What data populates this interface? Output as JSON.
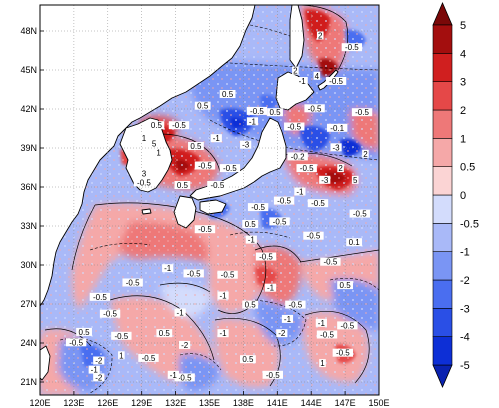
{
  "map": {
    "projection": "cylindrical-equidistant",
    "lon_range": [
      120,
      150
    ],
    "lat_range": [
      20,
      50
    ],
    "lon_ticks": [
      "120E",
      "123E",
      "126E",
      "129E",
      "132E",
      "135E",
      "138E",
      "141E",
      "144E",
      "147E",
      "150E"
    ],
    "lat_ticks": [
      "21N",
      "24N",
      "27N",
      "30N",
      "33N",
      "36N",
      "39N",
      "42N",
      "45N",
      "48N"
    ],
    "land_color": "#ffffff",
    "coastline_color": "#000000",
    "grid": "dotted"
  },
  "colorbar": {
    "orientation": "vertical",
    "arrow_ends": true,
    "levels": [
      "-5",
      "-4",
      "-3",
      "-2",
      "-1",
      "-0.5",
      "0",
      "0.5",
      "1",
      "2",
      "3",
      "4",
      "5"
    ],
    "colors": [
      "#0d2fd6",
      "#2a4fe6",
      "#4a6ef0",
      "#7a95f4",
      "#a9b9f8",
      "#d3dcfc",
      "#fbd4d4",
      "#f5a8a8",
      "#ee7878",
      "#e54848",
      "#d01f1f",
      "#a30e0e"
    ],
    "low_arrow_color": "#0a22b0",
    "high_arrow_color": "#7a0808"
  },
  "contour_labels": [
    {
      "text": "2",
      "lon": 144.8,
      "lat": 47.5
    },
    {
      "text": "-0.5",
      "lon": 147.6,
      "lat": 46.6
    },
    {
      "text": "2",
      "lon": 142.6,
      "lat": 44.8
    },
    {
      "text": "-1",
      "lon": 143.2,
      "lat": 44.0
    },
    {
      "text": "4",
      "lon": 144.5,
      "lat": 44.4
    },
    {
      "text": "-0.5",
      "lon": 146.2,
      "lat": 44.0
    },
    {
      "text": "0.5",
      "lon": 136.6,
      "lat": 43.0
    },
    {
      "text": "-0.5",
      "lon": 139.2,
      "lat": 41.7
    },
    {
      "text": "0.5",
      "lon": 140.8,
      "lat": 41.6
    },
    {
      "text": "0.5",
      "lon": 134.4,
      "lat": 42.1
    },
    {
      "text": "-0.5",
      "lon": 144.3,
      "lat": 41.9
    },
    {
      "text": "-0.5",
      "lon": 148.5,
      "lat": 41.6
    },
    {
      "text": "-0.5",
      "lon": 132.3,
      "lat": 40.6
    },
    {
      "text": "0.5",
      "lon": 130.3,
      "lat": 40.6
    },
    {
      "text": "-1",
      "lon": 138.8,
      "lat": 40.9
    },
    {
      "text": "-0.5",
      "lon": 142.5,
      "lat": 40.5
    },
    {
      "text": "-0.1",
      "lon": 146.3,
      "lat": 40.4
    },
    {
      "text": "1",
      "lon": 129.2,
      "lat": 39.6
    },
    {
      "text": "5",
      "lon": 130.1,
      "lat": 39.2
    },
    {
      "text": "0.5",
      "lon": 133.8,
      "lat": 39.0
    },
    {
      "text": "-1",
      "lon": 135.6,
      "lat": 39.6
    },
    {
      "text": "-3",
      "lon": 138.2,
      "lat": 39.1
    },
    {
      "text": "1",
      "lon": 130.5,
      "lat": 38.5
    },
    {
      "text": "-0.2",
      "lon": 142.8,
      "lat": 38.2
    },
    {
      "text": "-3",
      "lon": 146.2,
      "lat": 38.9
    },
    {
      "text": "2",
      "lon": 148.8,
      "lat": 38.4
    },
    {
      "text": "-0.5",
      "lon": 134.6,
      "lat": 37.5
    },
    {
      "text": "-0.5",
      "lon": 136.8,
      "lat": 37.3
    },
    {
      "text": "-0.5",
      "lon": 143.6,
      "lat": 37.3
    },
    {
      "text": "2",
      "lon": 146.6,
      "lat": 37.3
    },
    {
      "text": "3",
      "lon": 129.2,
      "lat": 36.9
    },
    {
      "text": "-0.5",
      "lon": 129.2,
      "lat": 36.2
    },
    {
      "text": "0.5",
      "lon": 132.6,
      "lat": 36.0
    },
    {
      "text": "-0.5",
      "lon": 135.7,
      "lat": 36.0
    },
    {
      "text": "-3",
      "lon": 145.2,
      "lat": 36.4
    },
    {
      "text": "5",
      "lon": 147.9,
      "lat": 36.4
    },
    {
      "text": "-1",
      "lon": 143.0,
      "lat": 35.5
    },
    {
      "text": "-0.5",
      "lon": 141.6,
      "lat": 34.8
    },
    {
      "text": "-0.5",
      "lon": 139.3,
      "lat": 34.3
    },
    {
      "text": "-0.5",
      "lon": 144.6,
      "lat": 34.6
    },
    {
      "text": "-0.5",
      "lon": 141.2,
      "lat": 33.2
    },
    {
      "text": "0.5",
      "lon": 138.6,
      "lat": 33.0
    },
    {
      "text": "-0.5",
      "lon": 134.6,
      "lat": 32.6
    },
    {
      "text": "-0.5",
      "lon": 148.3,
      "lat": 33.8
    },
    {
      "text": "-1",
      "lon": 138.7,
      "lat": 31.8
    },
    {
      "text": "-0.5",
      "lon": 144.2,
      "lat": 32.1
    },
    {
      "text": "0.1",
      "lon": 147.8,
      "lat": 31.6
    },
    {
      "text": "-0.5",
      "lon": 140.0,
      "lat": 30.5
    },
    {
      "text": "-0.5",
      "lon": 145.7,
      "lat": 30.1
    },
    {
      "text": "-1",
      "lon": 131.3,
      "lat": 29.6
    },
    {
      "text": "-0.5",
      "lon": 133.6,
      "lat": 29.2
    },
    {
      "text": "-0.5",
      "lon": 136.6,
      "lat": 29.1
    },
    {
      "text": "-0.5",
      "lon": 128.2,
      "lat": 28.5
    },
    {
      "text": "-1",
      "lon": 140.4,
      "lat": 28.1
    },
    {
      "text": "-1",
      "lon": 136.2,
      "lat": 27.5
    },
    {
      "text": "0.5",
      "lon": 147.0,
      "lat": 28.3
    },
    {
      "text": "-0.5",
      "lon": 125.3,
      "lat": 27.4
    },
    {
      "text": "0.5",
      "lon": 138.6,
      "lat": 26.8
    },
    {
      "text": "-0.5",
      "lon": 142.6,
      "lat": 26.8
    },
    {
      "text": "-0.5",
      "lon": 126.2,
      "lat": 26.1
    },
    {
      "text": "-1",
      "lon": 132.4,
      "lat": 26.2
    },
    {
      "text": "-1",
      "lon": 141.9,
      "lat": 25.7
    },
    {
      "text": "-1",
      "lon": 144.9,
      "lat": 25.4
    },
    {
      "text": "-0.5",
      "lon": 147.2,
      "lat": 25.2
    },
    {
      "text": "0.5",
      "lon": 123.9,
      "lat": 24.7
    },
    {
      "text": "0.5",
      "lon": 131.0,
      "lat": 24.6
    },
    {
      "text": "-0.5",
      "lon": 127.2,
      "lat": 24.4
    },
    {
      "text": "-1",
      "lon": 136.2,
      "lat": 24.6
    },
    {
      "text": "-2",
      "lon": 141.4,
      "lat": 24.6
    },
    {
      "text": "-0.5",
      "lon": 145.4,
      "lat": 24.5
    },
    {
      "text": "-0.5",
      "lon": 123.2,
      "lat": 23.9
    },
    {
      "text": "-2",
      "lon": 132.8,
      "lat": 23.7
    },
    {
      "text": "-0.5",
      "lon": 129.6,
      "lat": 22.7
    },
    {
      "text": "-0.5",
      "lon": 146.8,
      "lat": 23.1
    },
    {
      "text": "1",
      "lon": 127.2,
      "lat": 22.9
    },
    {
      "text": "-2",
      "lon": 125.2,
      "lat": 22.5
    },
    {
      "text": "1",
      "lon": 145.0,
      "lat": 22.3
    },
    {
      "text": "0.5",
      "lon": 138.4,
      "lat": 22.6
    },
    {
      "text": "-1",
      "lon": 124.8,
      "lat": 21.8
    },
    {
      "text": "-2",
      "lon": 125.2,
      "lat": 21.2
    },
    {
      "text": "-0.5",
      "lon": 140.6,
      "lat": 21.4
    },
    {
      "text": "-0.5",
      "lon": 132.8,
      "lat": 21.2
    },
    {
      "text": "-1",
      "lon": 131.8,
      "lat": 21.4
    }
  ]
}
